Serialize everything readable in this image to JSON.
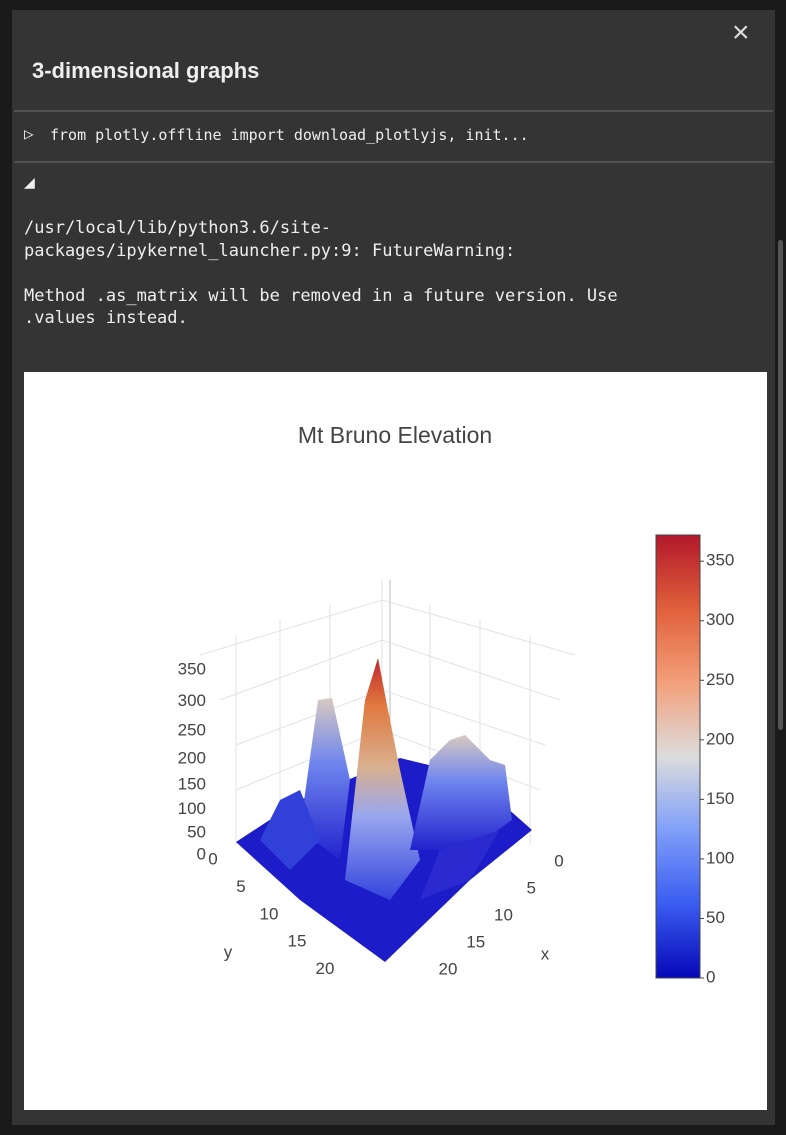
{
  "panel": {
    "title": "3-dimensional graphs",
    "close": "×"
  },
  "code_cell": {
    "toggle": "▷",
    "code": "from plotly.offline import download_plotlyjs, init..."
  },
  "output": {
    "toggle": "◢",
    "lines": [
      "/usr/local/lib/python3.6/site-",
      "packages/ipykernel_launcher.py:9: FutureWarning:",
      "",
      "Method .as_matrix will be removed in a future version. Use",
      ".values instead."
    ]
  },
  "chart_data": {
    "type": "surface",
    "title": "Mt Bruno Elevation",
    "xlabel": "x",
    "ylabel": "y",
    "xlim": [
      0,
      24
    ],
    "xticks": [
      0,
      5,
      10,
      15,
      20
    ],
    "ylim": [
      0,
      24
    ],
    "yticks": [
      0,
      5,
      10,
      15,
      20
    ],
    "zlim": [
      0,
      372
    ],
    "zticks": [
      0,
      50,
      100,
      150,
      200,
      250,
      300,
      350
    ],
    "colorbar": {
      "lim": [
        0,
        372
      ],
      "ticks": [
        0,
        50,
        100,
        150,
        200,
        250,
        300,
        350
      ]
    },
    "colorscale": [
      "#0508b8",
      "#3a5cf0",
      "#7f9ff9",
      "#dcdcdc",
      "#f3a07a",
      "#e0603a",
      "#b2182b"
    ]
  }
}
